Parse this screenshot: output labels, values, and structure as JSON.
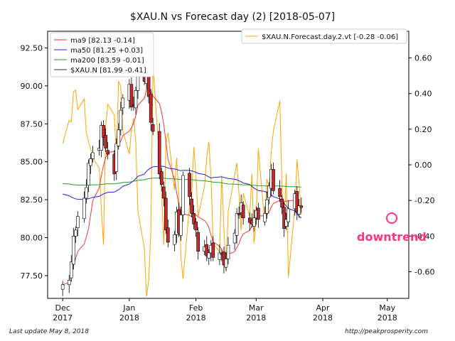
{
  "chart_data": {
    "type": "candlestick",
    "title": "$XAU.N vs Forecast day (2)  [2018-05-07]",
    "x_ticks": [
      {
        "date": "2017-12-01",
        "label1": "Dec",
        "label2": "2017"
      },
      {
        "date": "2018-01-01",
        "label1": "Jan",
        "label2": "2018"
      },
      {
        "date": "2018-02-01",
        "label1": "Feb",
        "label2": "2018"
      },
      {
        "date": "2018-03-01",
        "label1": "Mar",
        "label2": "2018"
      },
      {
        "date": "2018-04-01",
        "label1": "Apr",
        "label2": "2018"
      },
      {
        "date": "2018-05-01",
        "label1": "May",
        "label2": "2018"
      }
    ],
    "xlim": [
      "2017-11-24",
      "2018-05-11"
    ],
    "left_axis": {
      "ylim": [
        76.0,
        93.6
      ],
      "ticks": [
        77.5,
        80.0,
        82.5,
        85.0,
        87.5,
        90.0,
        92.5
      ],
      "tick_labels": [
        "77.50",
        "80.00",
        "82.50",
        "85.00",
        "87.50",
        "90.00",
        "92.50"
      ]
    },
    "right_axis": {
      "ylim": [
        -0.75,
        0.75
      ],
      "ticks": [
        -0.6,
        -0.4,
        -0.2,
        0.0,
        0.2,
        0.4,
        0.6
      ],
      "tick_labels": [
        "-0.60",
        "-0.40",
        "-0.20",
        "0.00",
        "0.20",
        "0.40",
        "0.60"
      ]
    },
    "legend_left": [
      {
        "label": "ma9 [82.13 -0.14]",
        "color": "#ff3333"
      },
      {
        "label": "ma50 [81.25 +0.03]",
        "color": "#2222ee"
      },
      {
        "label": "ma200 [83.59 -0.01]",
        "color": "#2a9a2a"
      },
      {
        "label": "$XAU.N [81.99 -0.41]",
        "color": "#333333"
      }
    ],
    "legend_right": [
      {
        "label": "$XAU.N.Forecast.day.2.vt [-0.28 -0.06]",
        "color": "#ffa500"
      }
    ],
    "annotation": {
      "text": "downtrend",
      "color": "#ff3380"
    },
    "price_series": {
      "name": "$XAU.N",
      "start_date": "2017-12-01",
      "close": [
        76.9,
        77.2,
        78.4,
        80.1,
        80.5,
        81.4,
        82.6,
        83.3,
        84.9,
        85.2,
        85.6,
        85.9,
        87.4,
        86.6,
        85.9,
        85.5,
        84.2,
        86.2,
        87.1,
        88.4,
        89.2,
        90.1,
        88.6,
        88.7,
        89.7,
        90.6,
        90.3,
        92.2,
        89.3,
        87.6,
        87.0,
        84.2,
        83.5,
        82.6,
        80.5,
        79.7,
        80.2,
        81.7,
        80.3,
        81.5,
        84.1,
        82.7,
        81.6,
        80.9,
        80.5,
        79.1,
        79.4,
        78.8,
        79.0,
        79.5,
        78.7,
        79.0,
        78.9,
        78.2,
        78.6,
        79.5,
        80.3,
        81.6,
        81.5,
        82.3,
        81.3,
        81.0,
        80.9,
        81.3,
        81.8,
        81.2,
        81.6,
        82.5,
        83.4,
        84.5,
        83.1,
        82.7,
        82.0,
        80.6,
        81.2,
        81.9,
        82.9,
        81.7,
        82.1,
        81.99
      ],
      "forecast": [
        0.12,
        0.25,
        0.24,
        0.41,
        0.42,
        0.31,
        0.37,
        0.18,
        0.13,
        0.09,
        0.04,
        -0.02,
        -0.25,
        -0.45,
        0.22,
        0.34,
        0.28,
        0.05,
        0.47,
        0.44,
        0.19,
        0.06,
        0.2,
        0.26,
        0.13,
        -0.26,
        -0.47,
        -0.74,
        -0.65,
        -0.38,
        0.55,
        0.04,
        -0.15,
        -0.45,
        0.12,
        0.18,
        -0.14,
        0.04,
        -0.17,
        -0.52,
        -0.64,
        -0.23,
        -0.18,
        0.1,
        -0.06,
        -0.29,
        -0.12,
        0.04,
        0.13,
        -0.07,
        -0.44,
        -0.49,
        -0.06,
        -0.36,
        -0.6,
        -0.26,
        -0.06,
        0.01,
        -0.16,
        -0.37,
        -0.16,
        -0.29,
        -0.05,
        -0.44,
        -0.31,
        0.09,
        -0.33,
        -0.08,
        -0.12,
        0.07,
        0.19,
        0.36,
        -0.12,
        -0.34,
        -0.05,
        -0.63,
        -0.24,
        0.03,
        -0.11,
        -0.28
      ]
    }
  },
  "footer": {
    "left": "Last update May  8, 2018",
    "right": "http://peakprosperity.com"
  }
}
